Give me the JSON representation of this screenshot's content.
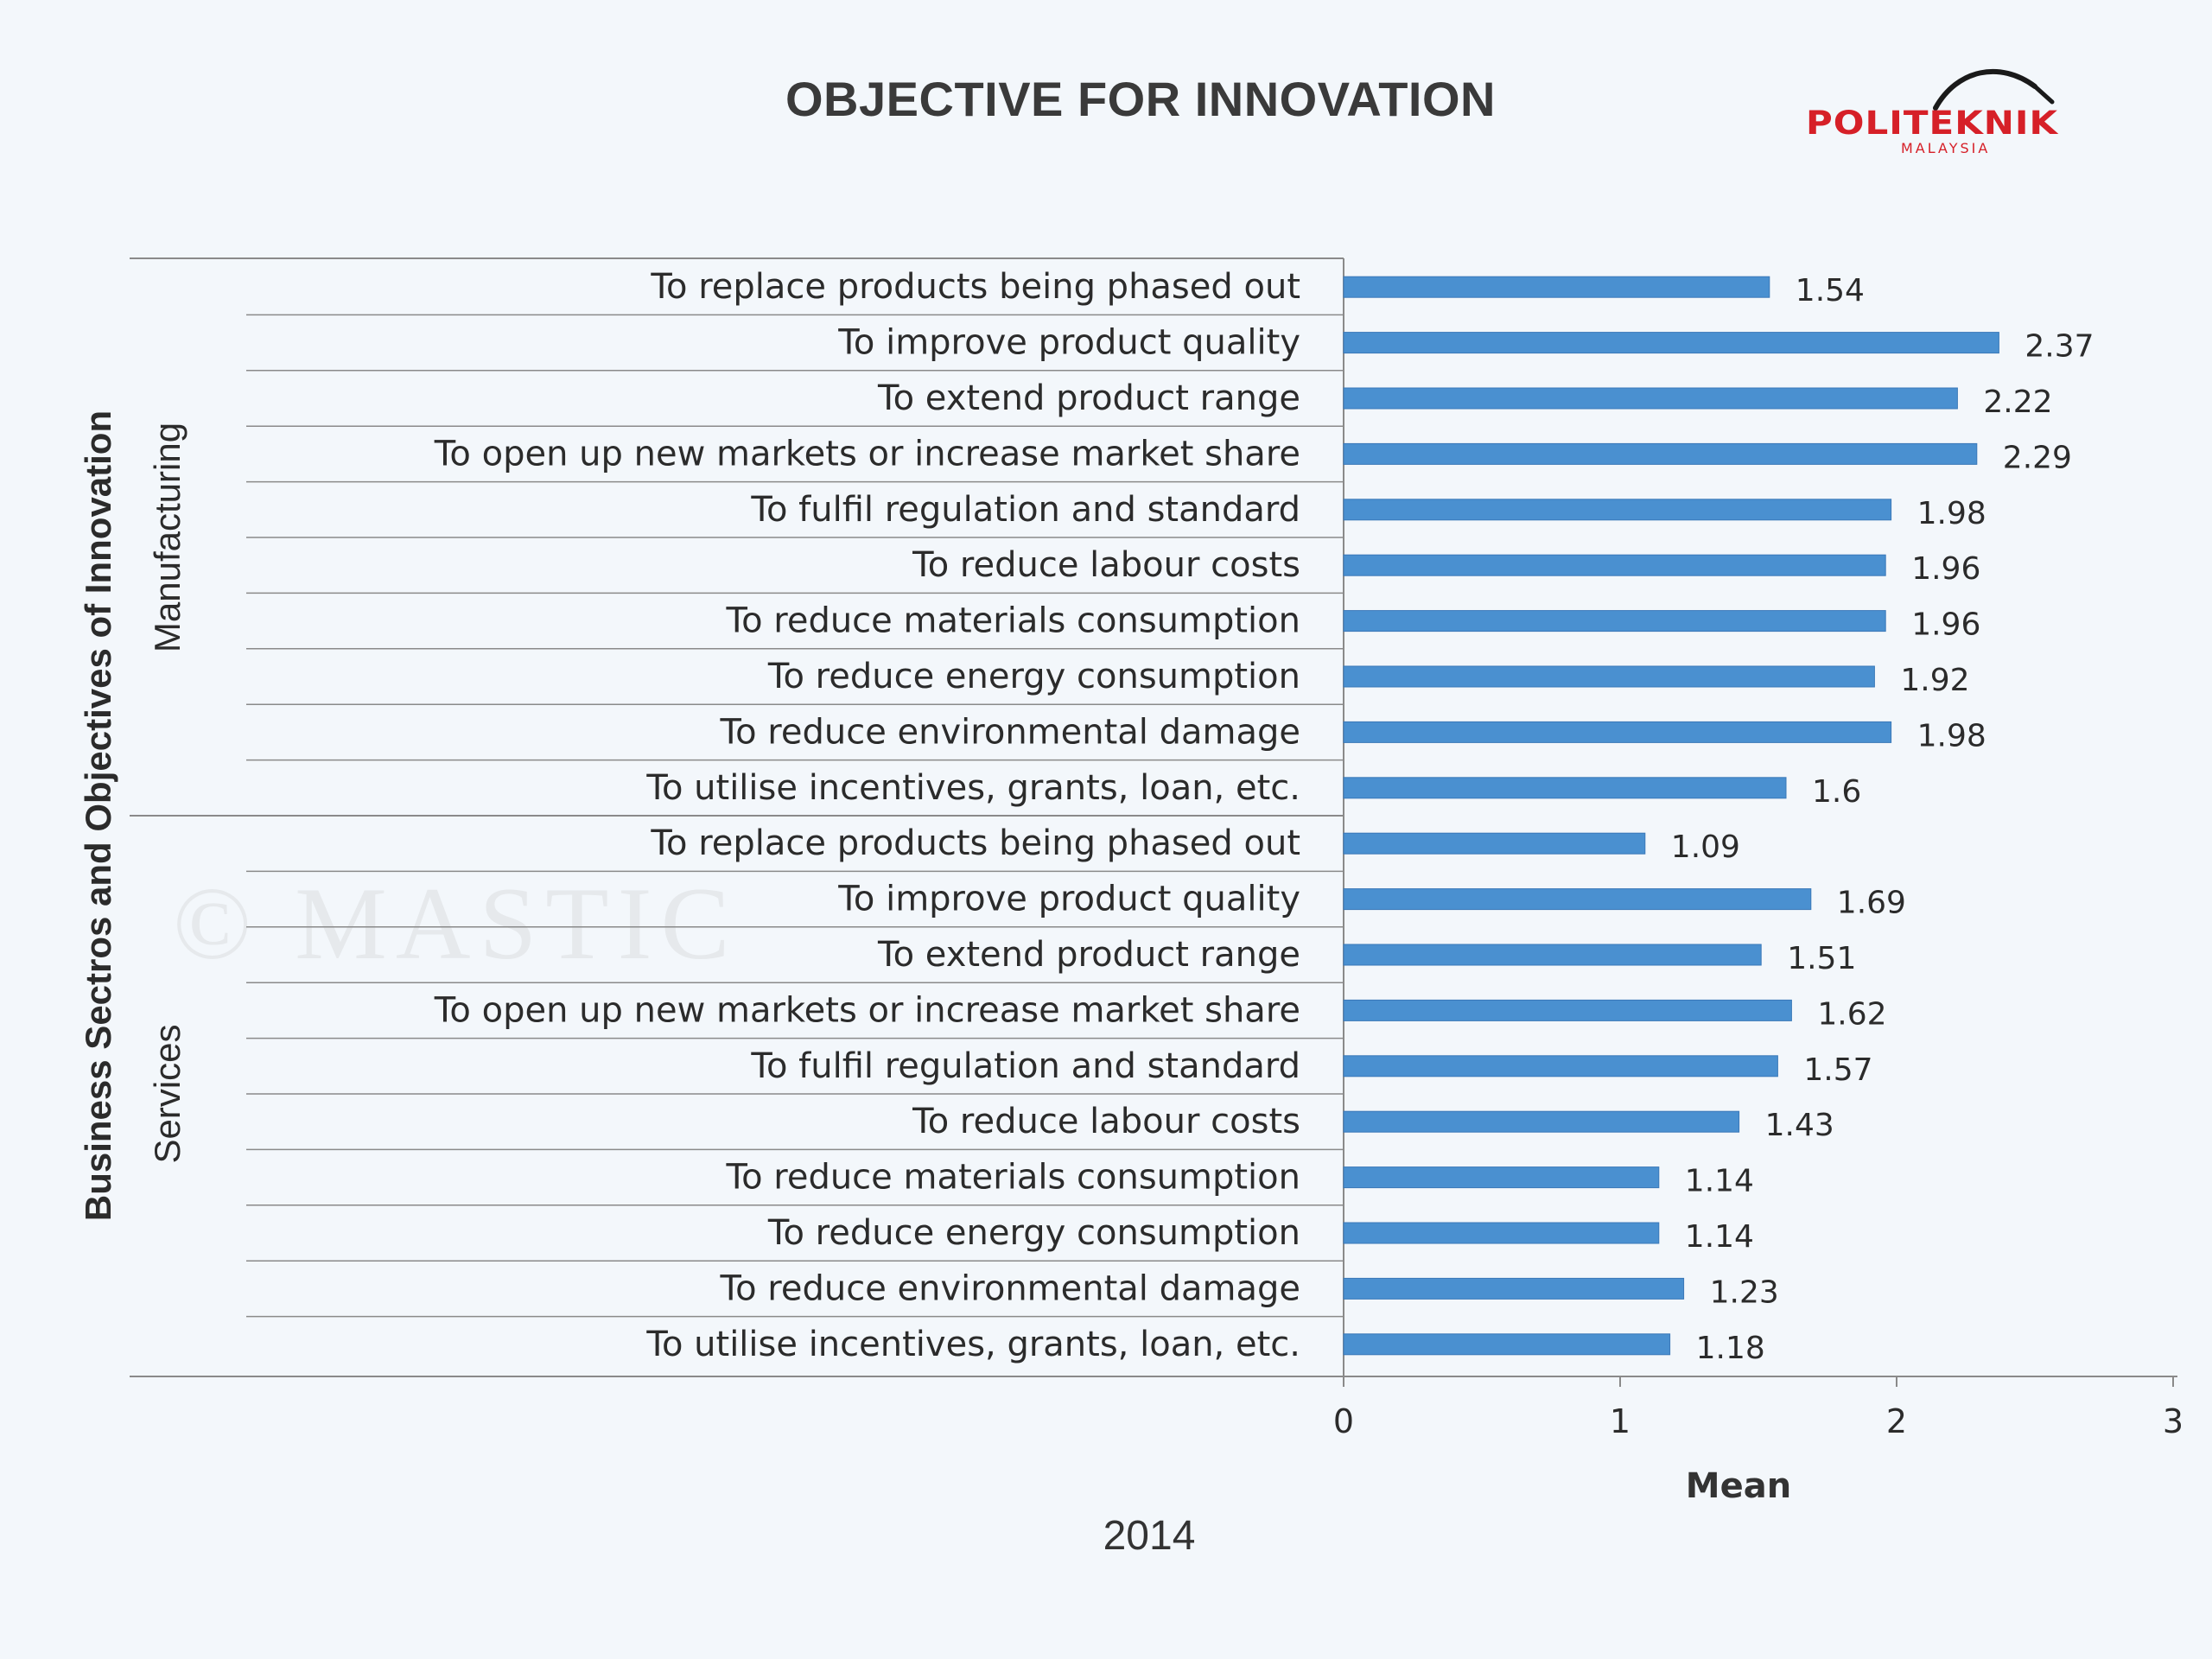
{
  "title": "OBJECTIVE FOR INNOVATION",
  "logo": {
    "name": "POLITEKNIK",
    "sub": "MALAYSIA"
  },
  "year": "2014",
  "watermark": "© MASTIC",
  "colors": {
    "bar": "#4a90d0",
    "bar_stroke": "#3a78b8",
    "brand": "#d62028"
  },
  "chart_data": {
    "type": "bar",
    "orientation": "horizontal",
    "xlabel": "Mean",
    "ylabel": "Business Sectros and Objectives of Innovation",
    "xlim": [
      0,
      3
    ],
    "xticks": [
      "0",
      "1",
      "2",
      "3"
    ],
    "grid": false,
    "groups": [
      {
        "name": "Manufacturing",
        "categories": [
          "To replace products being phased out",
          "To improve product quality",
          "To extend product range",
          "To open up new markets or increase market share",
          "To fulfil regulation and standard",
          "To reduce labour costs",
          "To reduce materials consumption",
          "To reduce energy consumption",
          "To reduce environmental damage",
          "To utilise incentives, grants, loan, etc."
        ],
        "values": [
          1.54,
          2.37,
          2.22,
          2.29,
          1.98,
          1.96,
          1.96,
          1.92,
          1.98,
          1.6
        ],
        "labels": [
          "1.54",
          "2.37",
          "2.22",
          "2.29",
          "1.98",
          "1.96",
          "1.96",
          "1.92",
          "1.98",
          "1.6"
        ]
      },
      {
        "name": "Services",
        "categories": [
          "To replace products being phased out",
          "To improve product quality",
          "To extend product range",
          "To open up new markets or increase market share",
          "To fulfil regulation and standard",
          "To reduce labour costs",
          "To reduce materials consumption",
          "To reduce energy consumption",
          "To reduce environmental damage",
          "To utilise incentives, grants, loan, etc."
        ],
        "values": [
          1.09,
          1.69,
          1.51,
          1.62,
          1.57,
          1.43,
          1.14,
          1.14,
          1.23,
          1.18
        ],
        "labels": [
          "1.09",
          "1.69",
          "1.51",
          "1.62",
          "1.57",
          "1.43",
          "1.14",
          "1.14",
          "1.23",
          "1.18"
        ]
      }
    ]
  }
}
